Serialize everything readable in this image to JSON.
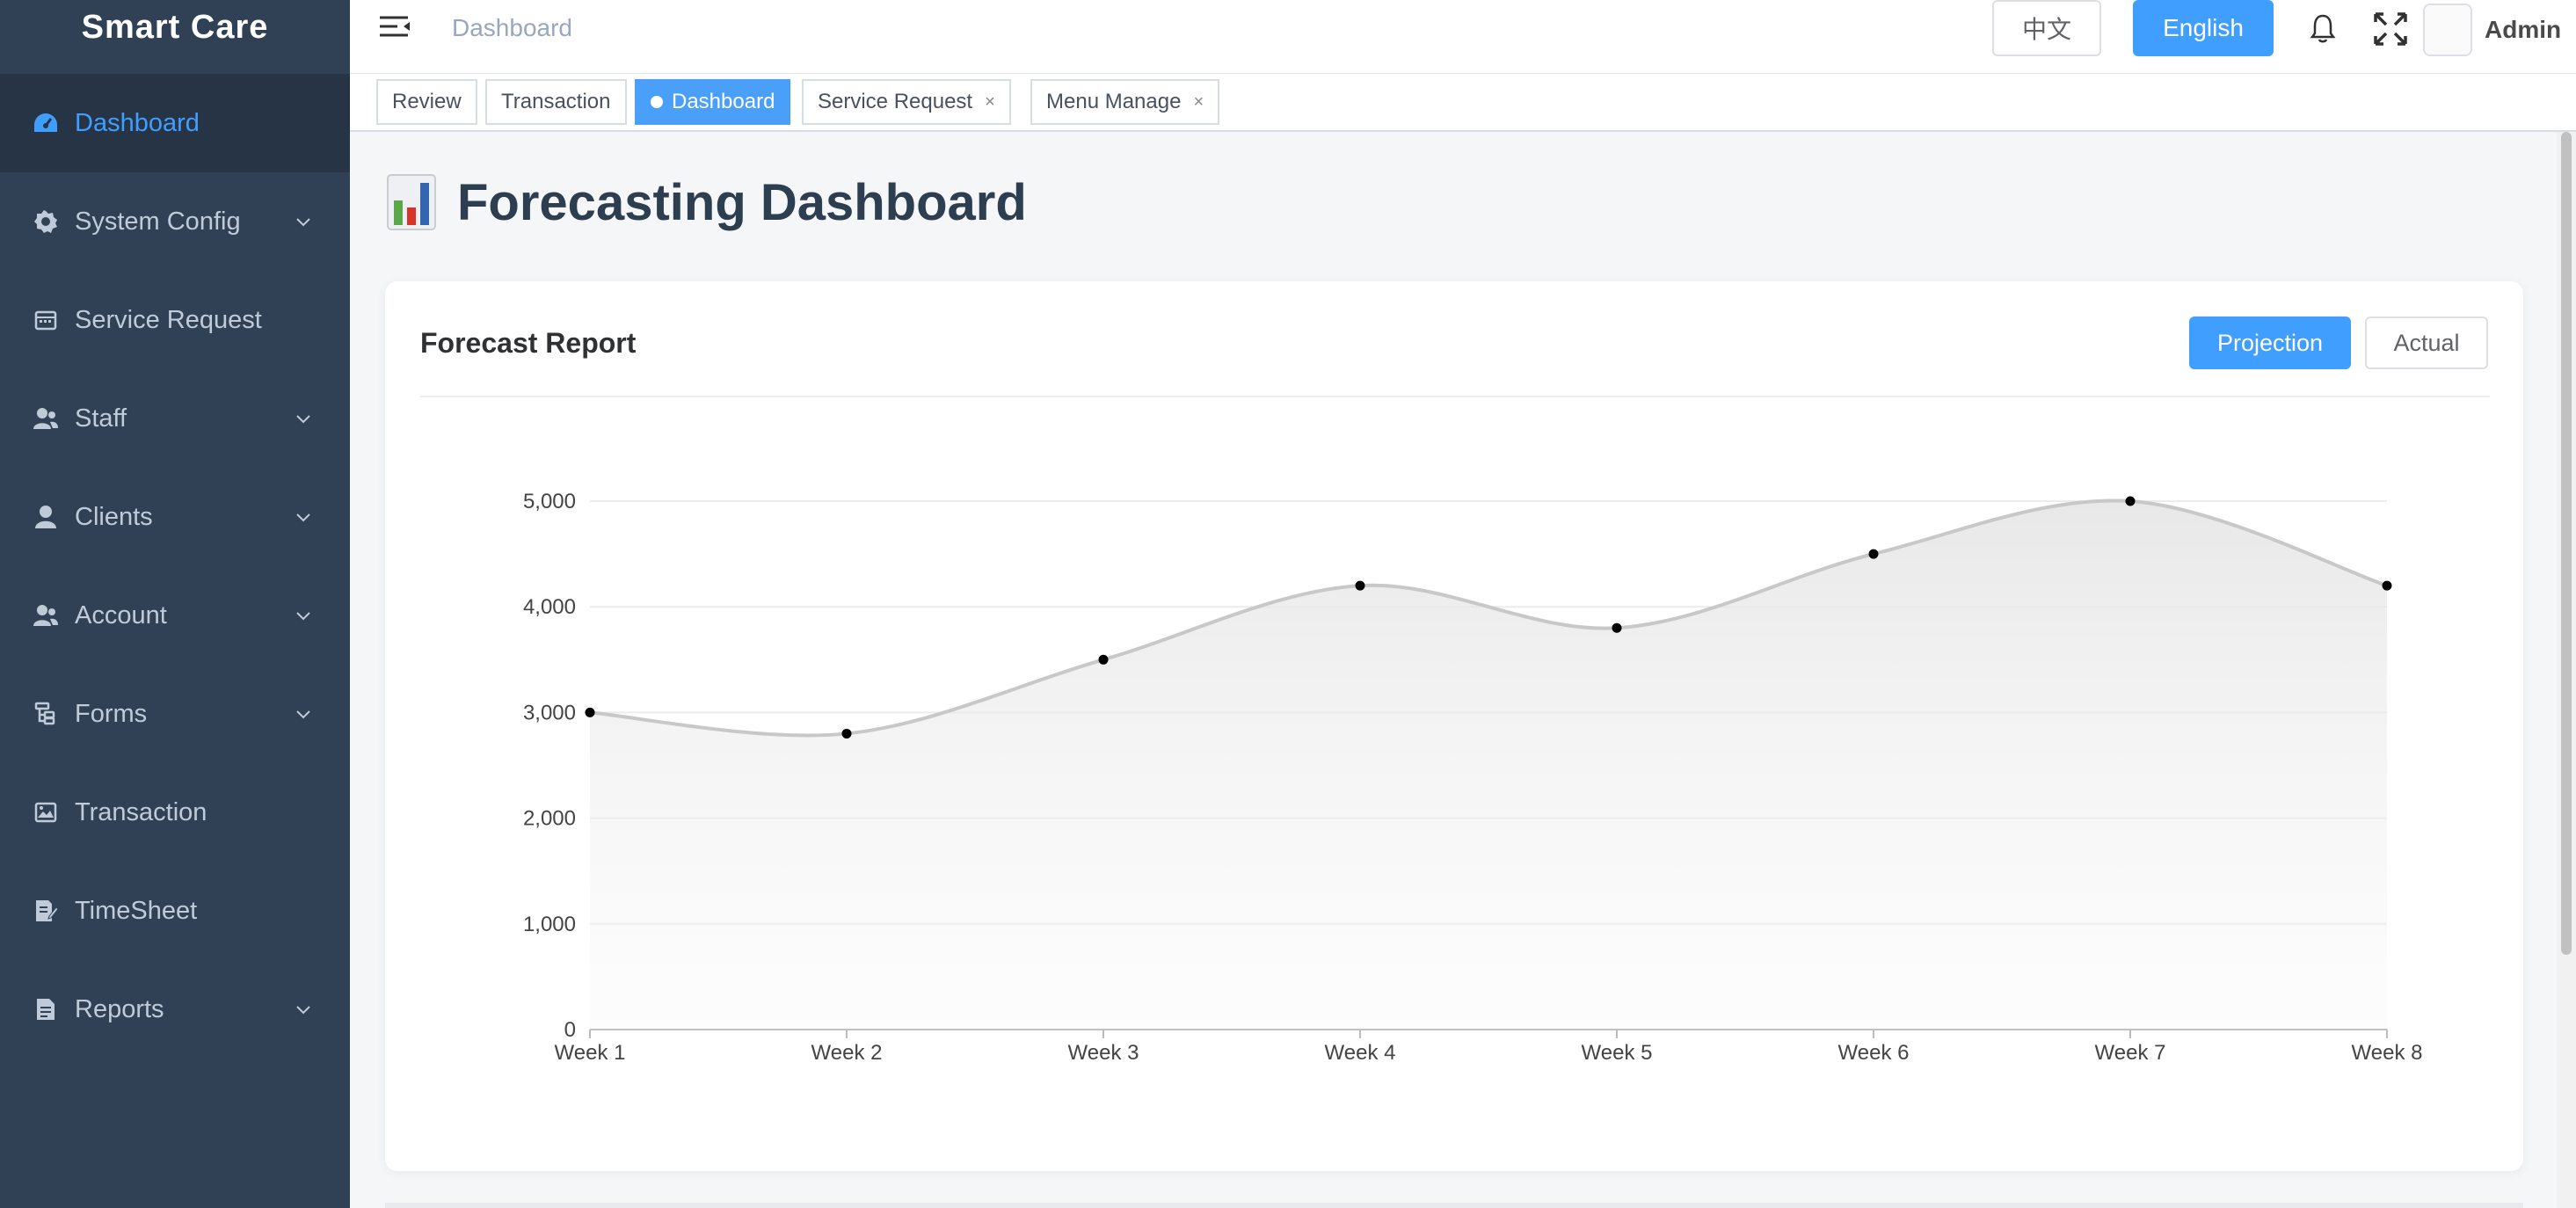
{
  "app": {
    "logo": "Smart Care"
  },
  "sidebar": {
    "items": [
      {
        "label": "Dashboard",
        "icon": "dashboard-icon",
        "active": true,
        "has_children": false
      },
      {
        "label": "System Config",
        "icon": "gear-icon",
        "active": false,
        "has_children": true
      },
      {
        "label": "Service Request",
        "icon": "calendar-icon",
        "active": false,
        "has_children": false
      },
      {
        "label": "Staff",
        "icon": "staff-icon",
        "active": false,
        "has_children": true
      },
      {
        "label": "Clients",
        "icon": "user-icon",
        "active": false,
        "has_children": true
      },
      {
        "label": "Account",
        "icon": "account-icon",
        "active": false,
        "has_children": true
      },
      {
        "label": "Forms",
        "icon": "tree-icon",
        "active": false,
        "has_children": true
      },
      {
        "label": "Transaction",
        "icon": "image-icon",
        "active": false,
        "has_children": false
      },
      {
        "label": "TimeSheet",
        "icon": "edit-document-icon",
        "active": false,
        "has_children": false
      },
      {
        "label": "Reports",
        "icon": "document-icon",
        "active": false,
        "has_children": true
      }
    ]
  },
  "navbar": {
    "breadcrumb": "Dashboard",
    "lang_zh": "中文",
    "lang_en": "English",
    "user": "Admin"
  },
  "tags": [
    {
      "label": "Review",
      "active": false,
      "closable": false
    },
    {
      "label": "Transaction",
      "active": false,
      "closable": false
    },
    {
      "label": "Dashboard",
      "active": true,
      "closable": false
    },
    {
      "label": "Service Request",
      "active": false,
      "closable": true,
      "close": "×"
    },
    {
      "label": "Menu Manage",
      "active": false,
      "closable": true,
      "close": "×"
    }
  ],
  "page": {
    "title": "Forecasting Dashboard"
  },
  "card": {
    "title": "Forecast Report",
    "btn_projection": "Projection",
    "btn_actual": "Actual"
  },
  "colors": {
    "sidebar_bg": "#304156",
    "accent": "#409eff",
    "line": "#c8c8c8"
  },
  "chart_data": {
    "type": "area",
    "categories": [
      "Week 1",
      "Week 2",
      "Week 3",
      "Week 4",
      "Week 5",
      "Week 6",
      "Week 7",
      "Week 8"
    ],
    "values": [
      3000,
      2800,
      3500,
      4200,
      3800,
      4500,
      5000,
      4200
    ],
    "ylim": [
      0,
      5000
    ],
    "yticks": [
      0,
      1000,
      2000,
      3000,
      4000,
      5000
    ],
    "ytick_labels": [
      "0",
      "1,000",
      "2,000",
      "3,000",
      "4,000",
      "5,000"
    ],
    "xlabel": "",
    "ylabel": "",
    "grid": true,
    "smooth": true
  }
}
